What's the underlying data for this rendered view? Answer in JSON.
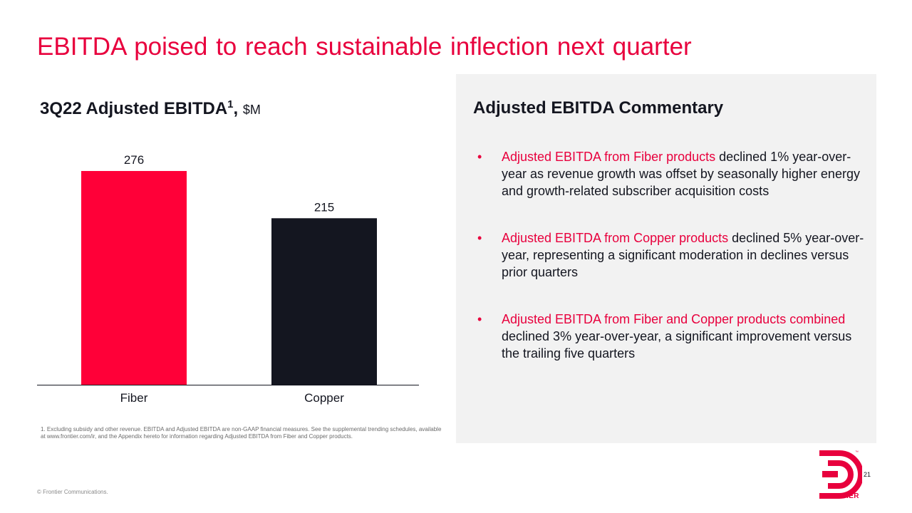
{
  "slide": {
    "title": "EBITDA poised to reach sustainable inflection next quarter",
    "chart_heading": {
      "main": "3Q22 Adjusted EBITDA",
      "sup": "1",
      "comma": ",",
      "unit": "$M"
    },
    "footnote": "1.   Excluding subsidy and other revenue. EBITDA and Adjusted EBITDA are non-GAAP  financial measures.  See the supplemental trending schedules, available at www.frontier.com/ir, and  the Appendix  hereto for information regarding Adjusted EBITDA from Fiber and Copper products.",
    "copyright": "© Frontier Communications.",
    "page_number": "21",
    "logo": {
      "text": "FRONTIER",
      "trademark": "™"
    }
  },
  "commentary": {
    "title": "Adjusted EBITDA Commentary",
    "bullet_char": "•",
    "bullets": [
      {
        "highlight": "Adjusted EBITDA from Fiber products",
        "rest": " declined 1% year-over-year as revenue growth was offset by seasonally higher energy and growth-related subscriber acquisition costs"
      },
      {
        "highlight": "Adjusted EBITDA from Copper products",
        "rest": " declined 5% year-over-year, representing a significant moderation in declines versus prior quarters"
      },
      {
        "highlight": "Adjusted EBITDA from Fiber and Copper products combined",
        "rest": " declined 3% year-over-year, a significant improvement versus the trailing five quarters"
      }
    ]
  },
  "colors": {
    "accent": "#e8003d",
    "dark": "#141620",
    "panel": "#f2f2f2"
  },
  "chart_data": {
    "type": "bar",
    "categories": [
      "Fiber",
      "Copper"
    ],
    "values": [
      276,
      215
    ],
    "data_labels": [
      "276",
      "215"
    ],
    "bar_colors": [
      "#ff0038",
      "#141620"
    ],
    "ylim": [
      0,
      300
    ],
    "grid": false,
    "legend": "none"
  }
}
